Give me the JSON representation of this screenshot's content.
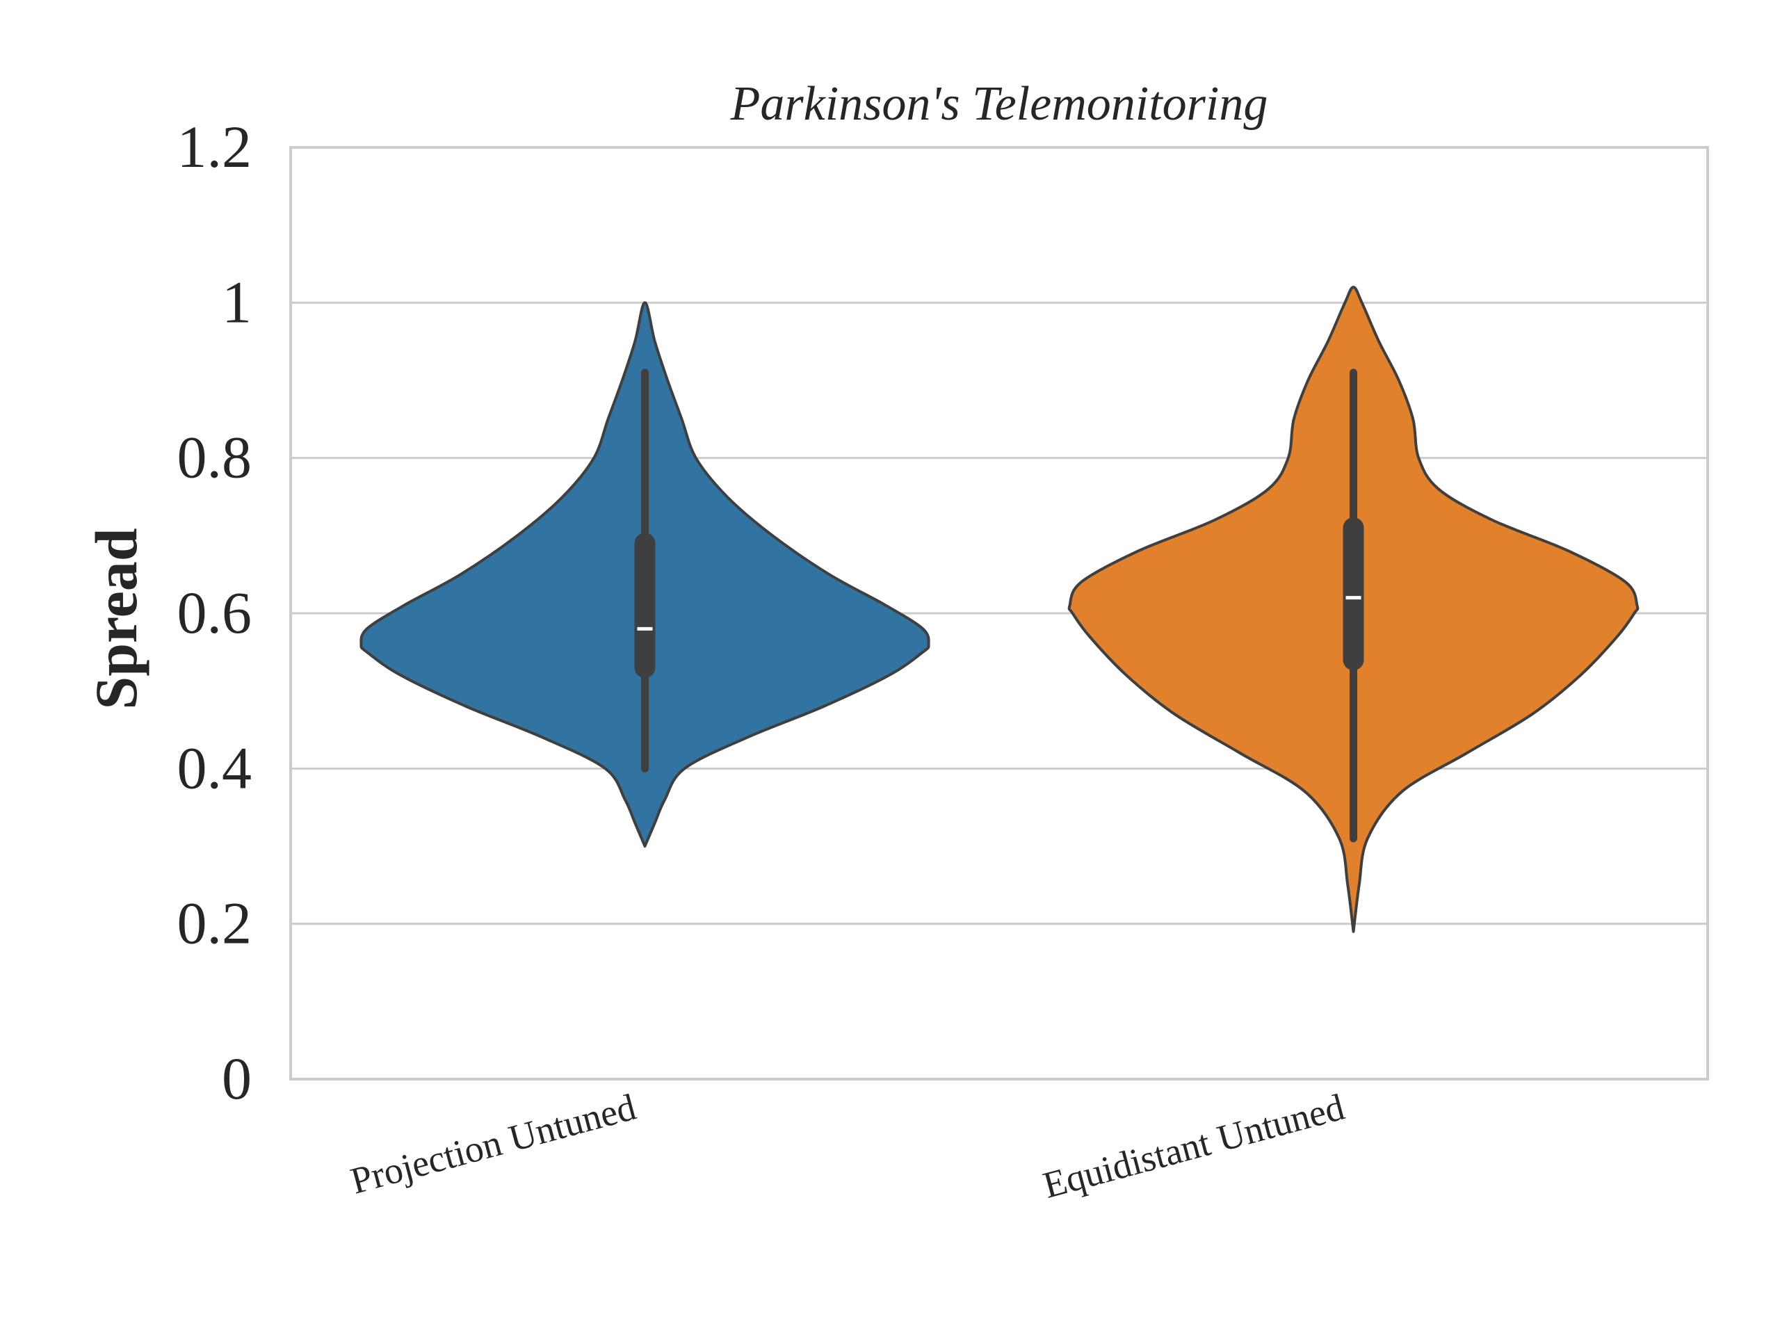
{
  "chart_data": {
    "type": "violin",
    "title": "Parkinson's Telemonitoring",
    "xlabel": "",
    "ylabel": "Spread",
    "ylim": [
      0,
      1.2
    ],
    "yticks": [
      "0",
      "0.2",
      "0.4",
      "0.6",
      "0.8",
      "1",
      "1.2"
    ],
    "grid": "horizontal",
    "categories": [
      "Projection Untuned",
      "Equidistant Untuned"
    ],
    "series": [
      {
        "color": "#3274a1",
        "min": 0.3,
        "max": 1.0,
        "median": 0.58,
        "q1": 0.53,
        "q3": 0.69,
        "whisker_low": 0.4,
        "whisker_high": 0.91,
        "density": [
          [
            0.3,
            0.0
          ],
          [
            0.33,
            0.035
          ],
          [
            0.36,
            0.07
          ],
          [
            0.4,
            0.14
          ],
          [
            0.44,
            0.36
          ],
          [
            0.48,
            0.63
          ],
          [
            0.52,
            0.86
          ],
          [
            0.55,
            0.98
          ],
          [
            0.56,
            1.0
          ],
          [
            0.58,
            0.98
          ],
          [
            0.61,
            0.85
          ],
          [
            0.65,
            0.65
          ],
          [
            0.7,
            0.45
          ],
          [
            0.75,
            0.29
          ],
          [
            0.8,
            0.18
          ],
          [
            0.85,
            0.13
          ],
          [
            0.9,
            0.08
          ],
          [
            0.95,
            0.035
          ],
          [
            1.0,
            0.0
          ]
        ]
      },
      {
        "color": "#e1812c",
        "min": 0.19,
        "max": 1.02,
        "median": 0.62,
        "q1": 0.54,
        "q3": 0.71,
        "whisker_low": 0.31,
        "whisker_high": 0.91,
        "density": [
          [
            0.19,
            0.0
          ],
          [
            0.25,
            0.02
          ],
          [
            0.31,
            0.05
          ],
          [
            0.37,
            0.17
          ],
          [
            0.42,
            0.4
          ],
          [
            0.47,
            0.63
          ],
          [
            0.52,
            0.8
          ],
          [
            0.57,
            0.93
          ],
          [
            0.6,
            0.99
          ],
          [
            0.61,
            1.0
          ],
          [
            0.64,
            0.96
          ],
          [
            0.68,
            0.76
          ],
          [
            0.72,
            0.49
          ],
          [
            0.76,
            0.3
          ],
          [
            0.8,
            0.23
          ],
          [
            0.85,
            0.21
          ],
          [
            0.9,
            0.16
          ],
          [
            0.95,
            0.09
          ],
          [
            1.0,
            0.03
          ],
          [
            1.02,
            0.0
          ]
        ]
      }
    ]
  }
}
